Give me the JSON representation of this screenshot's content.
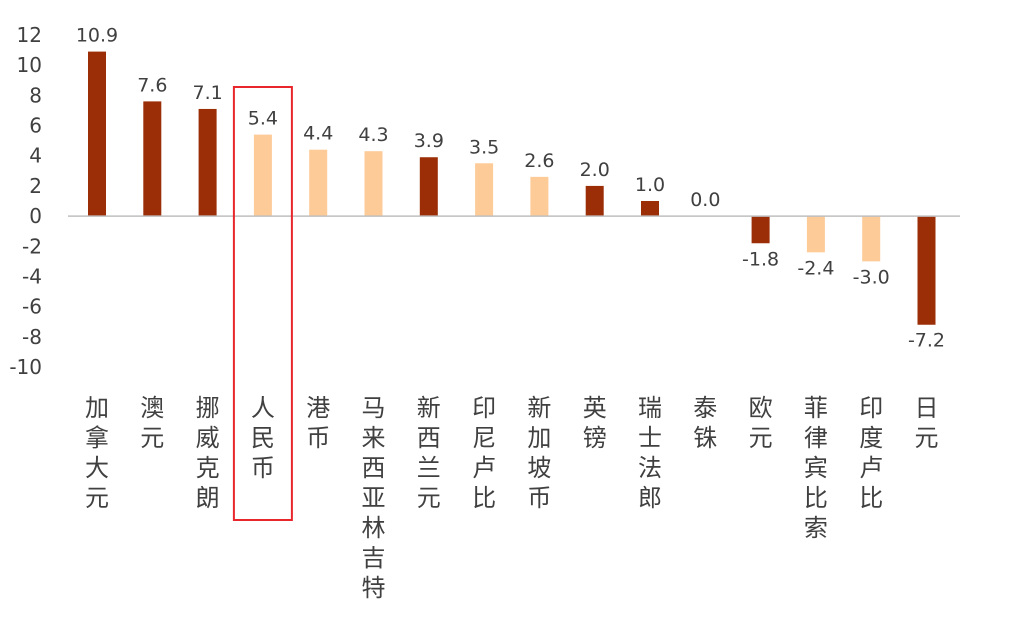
{
  "chart_data": {
    "type": "bar",
    "title": "",
    "xlabel": "",
    "ylabel": "",
    "ylim": [
      -10,
      12
    ],
    "yticks": [
      12,
      10,
      8,
      6,
      4,
      2,
      0,
      -2,
      -4,
      -6,
      -8,
      -10
    ],
    "grid": false,
    "legend": "none",
    "categories": [
      "加拿大元",
      "澳元",
      "挪威克朗",
      "人民币",
      "港币",
      "马来西亚林吉特",
      "新西兰元",
      "印尼卢比",
      "新加坡币",
      "英镑",
      "瑞士法郎",
      "泰铢",
      "欧元",
      "菲律宾比索",
      "印度卢比",
      "日元"
    ],
    "values": [
      10.9,
      7.6,
      7.1,
      5.4,
      4.4,
      4.3,
      3.9,
      3.5,
      2.6,
      2.0,
      1.0,
      0.0,
      -1.8,
      -2.4,
      -3.0,
      -7.2
    ],
    "value_labels": [
      "10.9",
      "7.6",
      "7.1",
      "5.4",
      "4.4",
      "4.3",
      "3.9",
      "3.5",
      "2.6",
      "2.0",
      "1.0",
      "0.0",
      "-1.8",
      "-2.4",
      "-3.0",
      "-7.2"
    ],
    "bar_colors": [
      "dark",
      "dark",
      "dark",
      "light",
      "light",
      "light",
      "dark",
      "light",
      "light",
      "dark",
      "dark",
      "light",
      "dark",
      "light",
      "light",
      "dark"
    ],
    "colors": {
      "dark": "#9B2D07",
      "light": "#FCCB98",
      "axis": "#BFBFBF",
      "highlight": "#E8262C"
    },
    "highlighted_category": "人民币"
  }
}
